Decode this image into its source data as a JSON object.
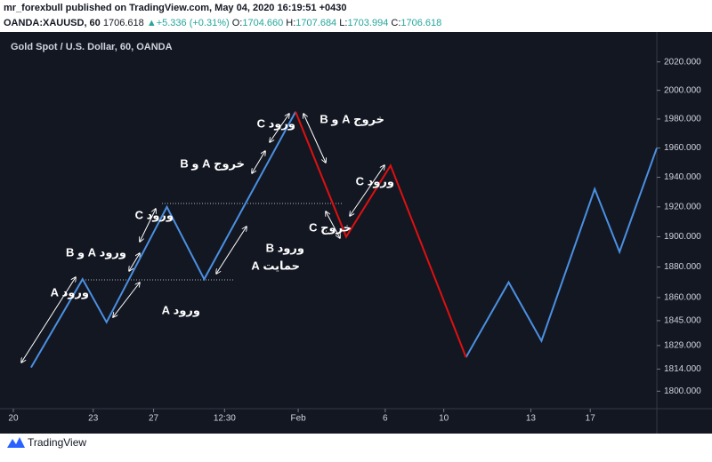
{
  "header": {
    "line1": "mr_forexbull published on TradingView.com, May 04, 2020 16:19:51 +0430",
    "symbol": "OANDA:XAUUSD, 60",
    "last": "1706.618",
    "arrow": "▲",
    "change": "+5.336 (+0.31%)",
    "o_label": "O:",
    "o": "1704.660",
    "h_label": "H:",
    "h": "1707.684",
    "l_label": "L:",
    "l": "1703.994",
    "c_label": "C:",
    "c": "1706.618"
  },
  "footer": {
    "brand": "TradingView"
  },
  "chart_data": {
    "type": "line",
    "title": "Gold Spot / U.S. Dollar, 60, OANDA",
    "log_scale": true,
    "grid": false,
    "x": [
      2.7,
      8.5,
      11.2,
      18,
      22.2,
      32.5,
      38.2,
      43.2,
      51.7,
      56.5,
      60.2,
      66.2,
      69,
      73.2
    ],
    "xlim": [
      0,
      73.2
    ],
    "xticks": [
      {
        "value": 0.7,
        "label": "20"
      },
      {
        "value": 9.7,
        "label": "23"
      },
      {
        "value": 16.5,
        "label": "27"
      },
      {
        "value": 24.5,
        "label": "12:30"
      },
      {
        "value": 32.8,
        "label": "Feb"
      },
      {
        "value": 42.6,
        "label": "6"
      },
      {
        "value": 49.2,
        "label": "10"
      },
      {
        "value": 59,
        "label": "13"
      },
      {
        "value": 65.7,
        "label": "17"
      }
    ],
    "ylim": [
      1789,
      2040
    ],
    "yticks": [
      {
        "value": 1800,
        "label": "1800.000"
      },
      {
        "value": 1814,
        "label": "1814.000"
      },
      {
        "value": 1829,
        "label": "1829.000"
      },
      {
        "value": 1845,
        "label": "1845.000"
      },
      {
        "value": 1860,
        "label": "1860.000"
      },
      {
        "value": 1880,
        "label": "1880.000"
      },
      {
        "value": 1900,
        "label": "1900.000"
      },
      {
        "value": 1920,
        "label": "1920.000"
      },
      {
        "value": 1940,
        "label": "1940.000"
      },
      {
        "value": 1960,
        "label": "1960.000"
      },
      {
        "value": 1980,
        "label": "1980.000"
      },
      {
        "value": 2000,
        "label": "2000.000"
      },
      {
        "value": 2020,
        "label": "2020.000"
      }
    ],
    "series": [
      {
        "color": "#4a90e2",
        "values": [
          1815,
          1872,
          1844,
          1920,
          1872,
          1985,
          null,
          null,
          1821.5,
          1870,
          1832,
          1932,
          1890,
          1960
        ]
      },
      {
        "color": "#e01010",
        "values": [
          null,
          null,
          null,
          null,
          null,
          1985,
          1900,
          1948,
          1821.5,
          null,
          null,
          null,
          null,
          null
        ]
      }
    ],
    "annotations": [
      "ورود A",
      "ورود A و B",
      "ورود C",
      "ورود A",
      "ورود C",
      "خروج A و B",
      "ورود B",
      "حمایت A",
      "خروج A و B",
      "ورود C",
      "خروج C"
    ]
  }
}
